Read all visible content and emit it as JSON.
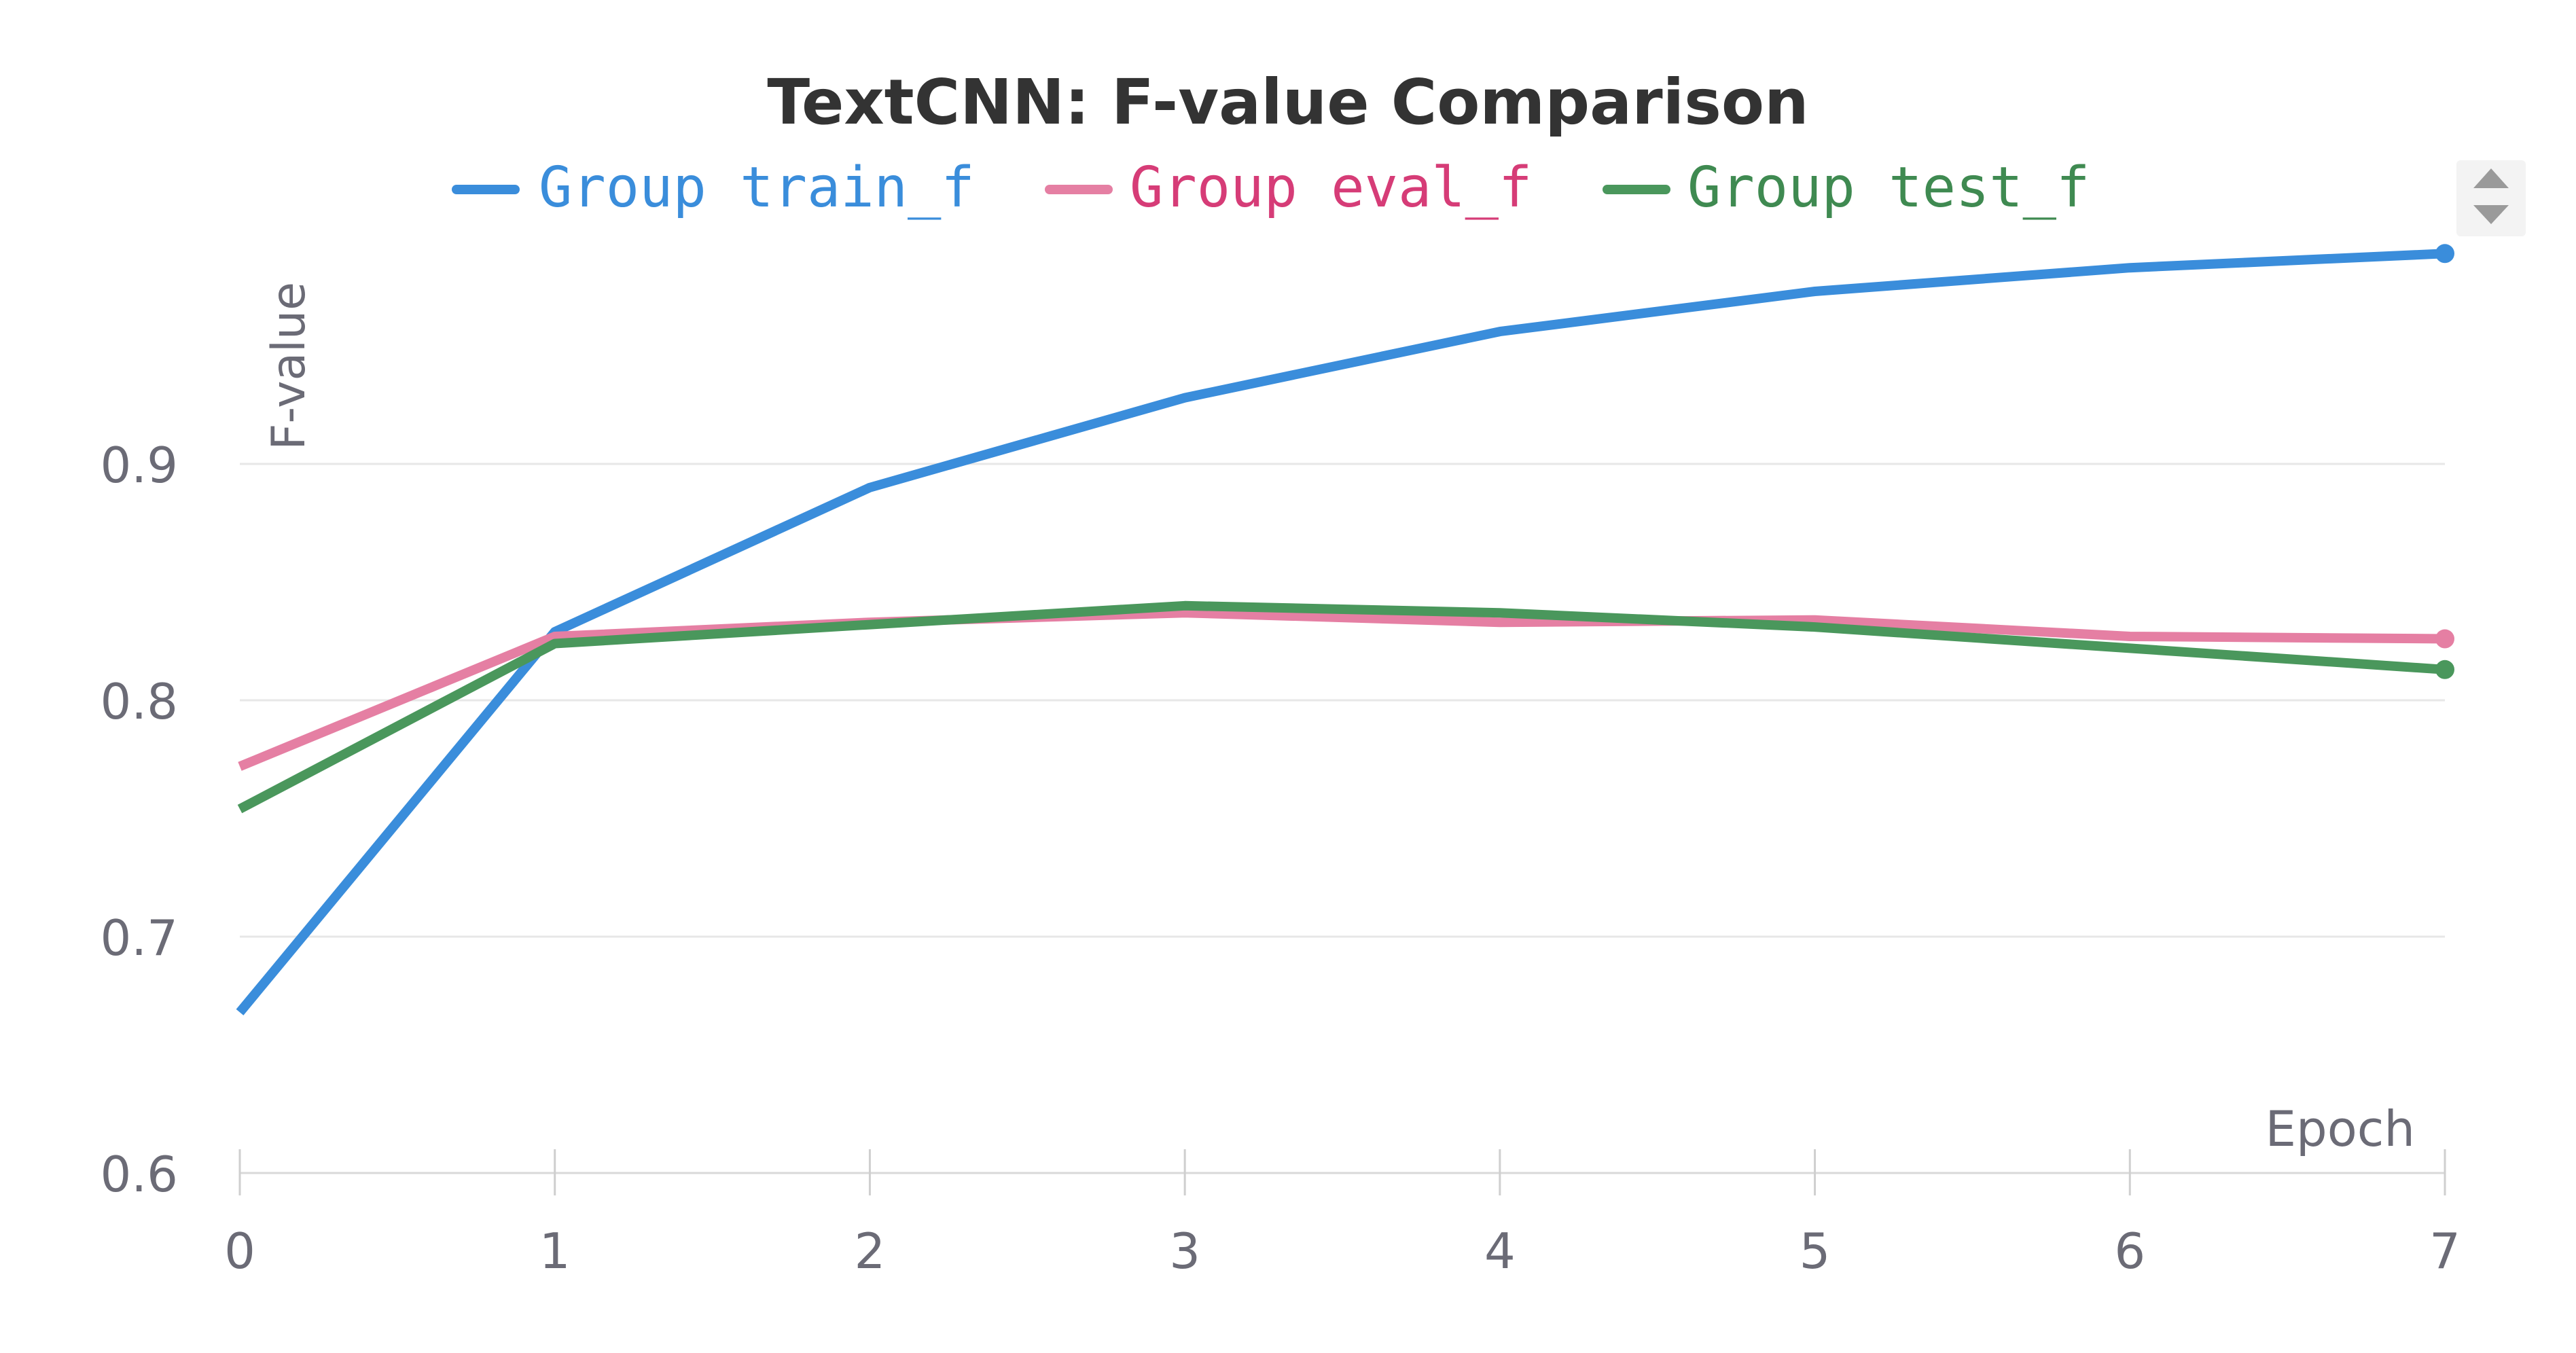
{
  "chart_data": {
    "type": "line",
    "title": "TextCNN: F-value Comparison",
    "xlabel": "Epoch",
    "ylabel": "F-value",
    "x": [
      0,
      1,
      2,
      3,
      4,
      5,
      6,
      7
    ],
    "x_ticks": [
      "0",
      "1",
      "2",
      "3",
      "4",
      "5",
      "6",
      "7"
    ],
    "y_ticks": [
      "0.6",
      "0.7",
      "0.8",
      "0.9"
    ],
    "xlim": [
      0,
      7
    ],
    "ylim": [
      0.6,
      0.99
    ],
    "grid": "horizontal",
    "legend_position": "top",
    "series": [
      {
        "name": "Group train_f",
        "color": "#3a8ddb",
        "text_color": "#3a8ddb",
        "values": [
          0.668,
          0.829,
          0.89,
          0.928,
          0.956,
          0.973,
          0.983,
          0.989
        ]
      },
      {
        "name": "Group eval_f",
        "color": "#e57fa3",
        "text_color": "#d63c77",
        "values": [
          0.772,
          0.827,
          0.833,
          0.837,
          0.833,
          0.834,
          0.827,
          0.826
        ]
      },
      {
        "name": "Group test_f",
        "color": "#4a975c",
        "text_color": "#3f8a51",
        "values": [
          0.754,
          0.824,
          0.832,
          0.84,
          0.837,
          0.831,
          0.822,
          0.813
        ]
      }
    ]
  },
  "controls": {
    "legend_scroll_up": "legend-scroll-up",
    "legend_scroll_down": "legend-scroll-down"
  }
}
